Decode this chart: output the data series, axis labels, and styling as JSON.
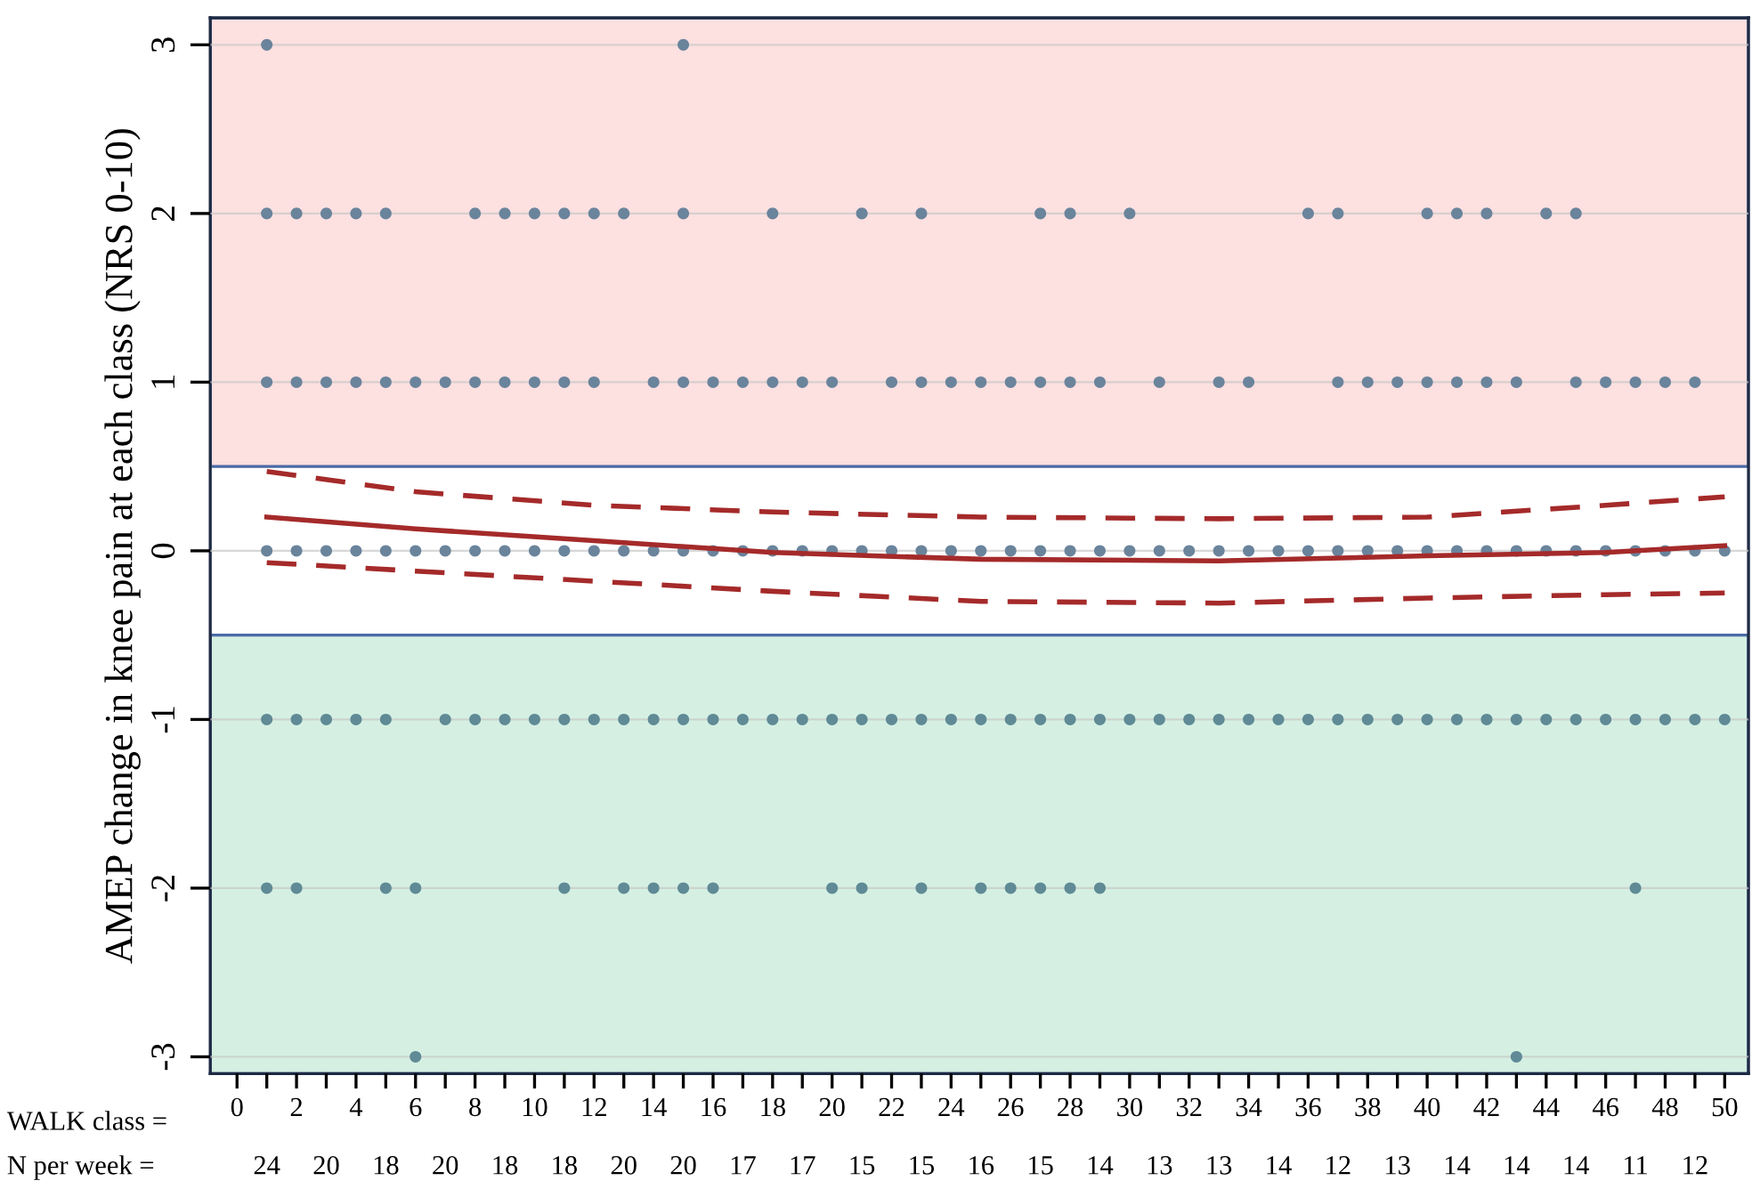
{
  "chart_data": {
    "type": "scatter",
    "ylabel": "AMEP change in knee pain at each class (NRS 0-10)",
    "xlim": [
      -0.9,
      50.8
    ],
    "ylim": [
      -3.1,
      3.16
    ],
    "xticks": [
      0,
      {
        "value": 1,
        "label": null
      },
      2,
      {
        "value": 3,
        "label": null
      },
      4,
      {
        "value": 5,
        "label": null
      },
      6,
      {
        "value": 7,
        "label": null
      },
      8,
      {
        "value": 9,
        "label": null
      },
      10,
      {
        "value": 11,
        "label": null
      },
      12,
      {
        "value": 13,
        "label": null
      },
      14,
      {
        "value": 15,
        "label": null
      },
      16,
      {
        "value": 17,
        "label": null
      },
      18,
      {
        "value": 19,
        "label": null
      },
      20,
      {
        "value": 21,
        "label": null
      },
      22,
      {
        "value": 23,
        "label": null
      },
      24,
      {
        "value": 25,
        "label": null
      },
      26,
      {
        "value": 27,
        "label": null
      },
      28,
      {
        "value": 29,
        "label": null
      },
      30,
      {
        "value": 31,
        "label": null
      },
      32,
      {
        "value": 33,
        "label": null
      },
      34,
      {
        "value": 35,
        "label": null
      },
      36,
      {
        "value": 37,
        "label": null
      },
      38,
      {
        "value": 39,
        "label": null
      },
      40,
      {
        "value": 41,
        "label": null
      },
      42,
      {
        "value": 43,
        "label": null
      },
      44,
      {
        "value": 45,
        "label": null
      },
      46,
      {
        "value": 47,
        "label": null
      },
      48,
      {
        "value": 49,
        "label": null
      },
      50
    ],
    "yticks": [
      -3,
      -2,
      -1,
      0,
      1,
      2,
      3
    ],
    "grid": "y",
    "legend": false,
    "marker": "circle",
    "bands": [
      {
        "axis": "y",
        "from": 0.5,
        "to": 3.16,
        "color": "#fde0e0"
      },
      {
        "axis": "y",
        "from": -3.1,
        "to": -0.5,
        "color": "#d5f0e2"
      }
    ],
    "series": [
      {
        "color": "#6a849c",
        "x": [
          1,
          15
        ],
        "values": [
          3,
          3
        ]
      },
      {
        "color": "#6a849c",
        "x": [
          1,
          2,
          3,
          4,
          5,
          8,
          9,
          10,
          11,
          12,
          13,
          15,
          18,
          21,
          23,
          27,
          28,
          30,
          36,
          37,
          40,
          41,
          42,
          44,
          45
        ],
        "values": [
          2,
          2,
          2,
          2,
          2,
          2,
          2,
          2,
          2,
          2,
          2,
          2,
          2,
          2,
          2,
          2,
          2,
          2,
          2,
          2,
          2,
          2,
          2,
          2,
          2
        ]
      },
      {
        "color": "#6a849c",
        "x": [
          1,
          2,
          3,
          4,
          5,
          6,
          7,
          8,
          9,
          10,
          11,
          12,
          14,
          15,
          16,
          17,
          18,
          19,
          20,
          22,
          23,
          24,
          25,
          26,
          27,
          28,
          29,
          31,
          33,
          34,
          37,
          38,
          39,
          40,
          41,
          42,
          43,
          45,
          46,
          47,
          48,
          49
        ],
        "values": [
          1,
          1,
          1,
          1,
          1,
          1,
          1,
          1,
          1,
          1,
          1,
          1,
          1,
          1,
          1,
          1,
          1,
          1,
          1,
          1,
          1,
          1,
          1,
          1,
          1,
          1,
          1,
          1,
          1,
          1,
          1,
          1,
          1,
          1,
          1,
          1,
          1,
          1,
          1,
          1,
          1,
          1
        ]
      },
      {
        "color": "#6a849c",
        "x": [
          1,
          2,
          3,
          4,
          5,
          6,
          7,
          8,
          9,
          10,
          11,
          12,
          13,
          14,
          15,
          16,
          17,
          18,
          19,
          20,
          21,
          22,
          23,
          24,
          25,
          26,
          27,
          28,
          29,
          30,
          31,
          32,
          33,
          34,
          35,
          36,
          37,
          38,
          39,
          40,
          41,
          42,
          43,
          44,
          45,
          46,
          47,
          48,
          49,
          50
        ],
        "values": [
          0,
          0,
          0,
          0,
          0,
          0,
          0,
          0,
          0,
          0,
          0,
          0,
          0,
          0,
          0,
          0,
          0,
          0,
          0,
          0,
          0,
          0,
          0,
          0,
          0,
          0,
          0,
          0,
          0,
          0,
          0,
          0,
          0,
          0,
          0,
          0,
          0,
          0,
          0,
          0,
          0,
          0,
          0,
          0,
          0,
          0,
          0,
          0,
          0,
          0
        ]
      },
      {
        "color": "#5f8a96",
        "x": [
          1,
          2,
          3,
          4,
          5,
          7,
          8,
          9,
          10,
          11,
          12,
          13,
          14,
          15,
          16,
          17,
          18,
          19,
          20,
          21,
          22,
          23,
          24,
          25,
          26,
          27,
          28,
          29,
          30,
          31,
          32,
          33,
          34,
          35,
          36,
          37,
          38,
          39,
          40,
          41,
          42,
          43,
          44,
          45,
          46,
          47,
          48,
          49,
          50
        ],
        "values": [
          -1,
          -1,
          -1,
          -1,
          -1,
          -1,
          -1,
          -1,
          -1,
          -1,
          -1,
          -1,
          -1,
          -1,
          -1,
          -1,
          -1,
          -1,
          -1,
          -1,
          -1,
          -1,
          -1,
          -1,
          -1,
          -1,
          -1,
          -1,
          -1,
          -1,
          -1,
          -1,
          -1,
          -1,
          -1,
          -1,
          -1,
          -1,
          -1,
          -1,
          -1,
          -1,
          -1,
          -1,
          -1,
          -1,
          -1,
          -1,
          -1
        ]
      },
      {
        "color": "#5f8a96",
        "x": [
          1,
          2,
          5,
          6,
          11,
          13,
          14,
          15,
          16,
          20,
          21,
          23,
          25,
          26,
          27,
          28,
          29,
          47
        ],
        "values": [
          -2,
          -2,
          -2,
          -2,
          -2,
          -2,
          -2,
          -2,
          -2,
          -2,
          -2,
          -2,
          -2,
          -2,
          -2,
          -2,
          -2,
          -2
        ]
      },
      {
        "color": "#5f8a96",
        "x": [
          6,
          43
        ],
        "values": [
          -3,
          -3
        ]
      },
      {
        "type": "line",
        "color": "#a52a2a",
        "line_style": "solid",
        "marker": "none",
        "x": [
          1,
          6,
          12,
          18,
          25,
          33,
          40,
          46,
          50
        ],
        "values": [
          0.2,
          0.13,
          0.06,
          -0.01,
          -0.05,
          -0.06,
          -0.03,
          -0.01,
          0.03
        ]
      },
      {
        "type": "line",
        "color": "#a52a2a",
        "line_style": "dashed",
        "marker": "none",
        "x": [
          1,
          6,
          12,
          18,
          25,
          33,
          40,
          46,
          50
        ],
        "values": [
          0.47,
          0.35,
          0.27,
          0.23,
          0.2,
          0.19,
          0.2,
          0.27,
          0.32
        ]
      },
      {
        "type": "line",
        "color": "#a52a2a",
        "line_style": "dashed",
        "marker": "none",
        "x": [
          1,
          6,
          12,
          18,
          25,
          33,
          40,
          46,
          50
        ],
        "values": [
          -0.07,
          -0.12,
          -0.18,
          -0.24,
          -0.3,
          -0.31,
          -0.28,
          -0.26,
          -0.25
        ]
      }
    ],
    "xlabel": "WALK class =",
    "annotations": [
      "N per week =",
      "24",
      "20",
      "18",
      "20",
      "18",
      "18",
      "20",
      "20",
      "17",
      "17",
      "15",
      "15",
      "16",
      "15",
      "14",
      "13",
      "13",
      "14",
      "12",
      "13",
      "14",
      "14",
      "14",
      "11",
      "12"
    ]
  }
}
